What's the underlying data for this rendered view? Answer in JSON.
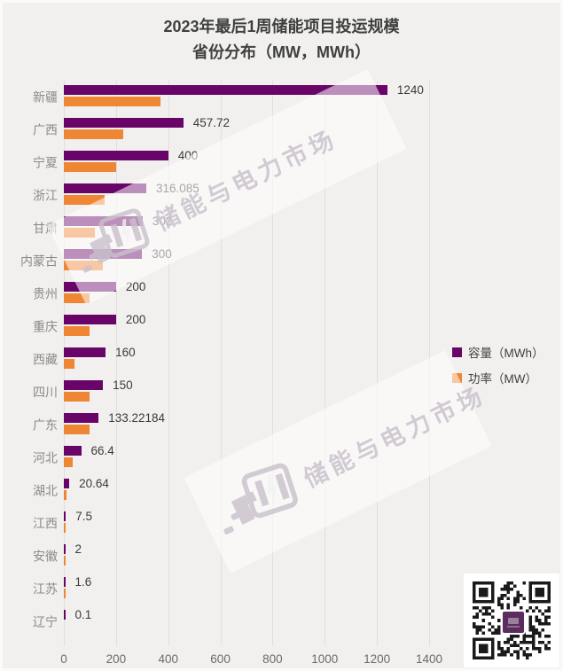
{
  "title": {
    "line1": "2023年最后1周储能项目投运规模",
    "line2": "省份分布（MW，MWh）"
  },
  "legend": {
    "capacity_label": "容量（MWh）",
    "power_label": "功率（MW）"
  },
  "watermark": {
    "text": "储能与电力市场"
  },
  "colors": {
    "capacity": "#690569",
    "power": "#EE8634",
    "background": "#F1F0EE",
    "gridline": "#E0DFDC"
  },
  "chart_data": {
    "type": "bar",
    "orientation": "horizontal",
    "title": "2023年最后1周储能项目投运规模 省份分布（MW，MWh）",
    "categories": [
      "新疆",
      "广西",
      "宁夏",
      "浙江",
      "甘肃",
      "内蒙古",
      "贵州",
      "重庆",
      "西藏",
      "四川",
      "广东",
      "河北",
      "湖北",
      "江西",
      "安徽",
      "江苏",
      "辽宁"
    ],
    "series": [
      {
        "name": "容量（MWh）",
        "color": "#690569",
        "values": [
          1240,
          457.72,
          400,
          316.085,
          302,
          300,
          200,
          200,
          160,
          150,
          133.22184,
          66.4,
          20.64,
          7.5,
          2,
          1.6,
          0.1
        ],
        "data_labels": [
          "1240",
          "457.72",
          "400",
          "316.085",
          "302",
          "300",
          "200",
          "200",
          "160",
          "150",
          "133.22184",
          "66.4",
          "20.64",
          "7.5",
          "2",
          "1.6",
          "0.1"
        ]
      },
      {
        "name": "功率（MW）",
        "color": "#EE8634",
        "values": [
          370,
          229,
          200,
          158,
          120,
          150,
          100,
          100,
          40,
          100,
          100,
          33,
          10,
          4,
          1,
          1,
          0
        ]
      }
    ],
    "xlim": [
      0,
      1400
    ],
    "xticks": [
      0,
      200,
      400,
      600,
      800,
      1000,
      1200,
      1400
    ],
    "xtick_labels": [
      "0",
      "200",
      "400",
      "600",
      "800",
      "1000",
      "1200",
      "1400"
    ],
    "grid": "vertical",
    "legend_position": "right-middle"
  }
}
